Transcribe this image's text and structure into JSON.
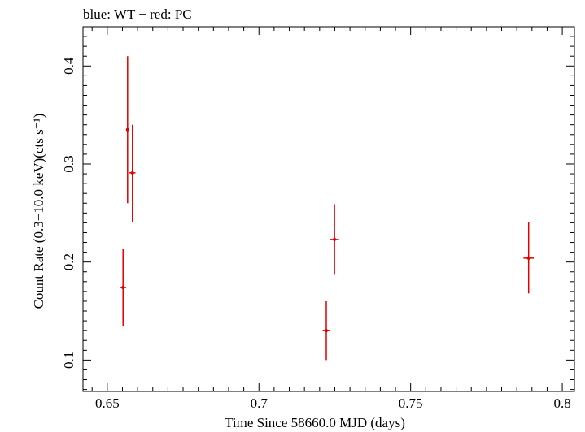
{
  "chart_data": {
    "type": "scatter",
    "title": "blue: WT − red: PC",
    "xlabel": "Time Since 58660.0 MJD (days)",
    "ylabel": "Count Rate (0.3−10.0 keV)(cts s⁻¹)",
    "xlim": [
      0.642,
      0.804
    ],
    "ylim": [
      0.068,
      0.44
    ],
    "x_ticks": [
      0.65,
      0.7,
      0.75,
      0.8
    ],
    "x_tick_labels": [
      "0.65",
      "0.7",
      "0.75",
      "0.8"
    ],
    "y_ticks": [
      0.1,
      0.2,
      0.3,
      0.4
    ],
    "y_tick_labels": [
      "0.1",
      "0.2",
      "0.3",
      "0.4"
    ],
    "grid": false,
    "series": [
      {
        "color": "#e00000",
        "points": [
          {
            "x": 0.6552,
            "y": 0.174,
            "xerr": 0.001,
            "ylo": 0.135,
            "yhi": 0.213
          },
          {
            "x": 0.6567,
            "y": 0.335,
            "xerr": 0.0005,
            "ylo": 0.26,
            "yhi": 0.41
          },
          {
            "x": 0.6583,
            "y": 0.291,
            "xerr": 0.001,
            "ylo": 0.241,
            "yhi": 0.34
          },
          {
            "x": 0.7222,
            "y": 0.13,
            "xerr": 0.0012,
            "ylo": 0.1,
            "yhi": 0.16
          },
          {
            "x": 0.7249,
            "y": 0.223,
            "xerr": 0.0015,
            "ylo": 0.187,
            "yhi": 0.259
          },
          {
            "x": 0.7889,
            "y": 0.204,
            "xerr": 0.0017,
            "ylo": 0.168,
            "yhi": 0.241
          }
        ]
      }
    ]
  }
}
